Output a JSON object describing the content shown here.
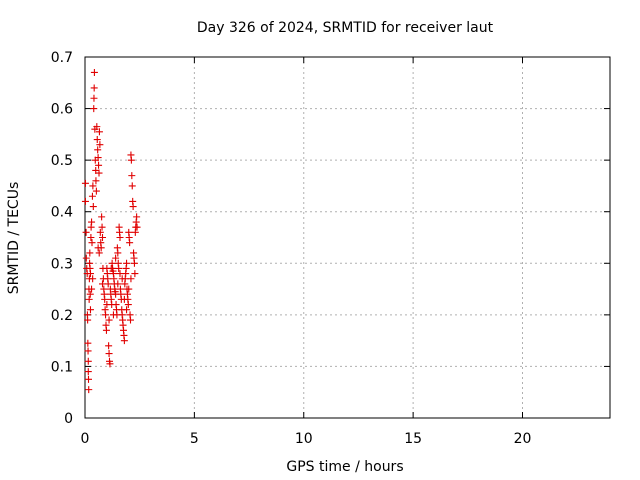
{
  "chart_data": {
    "type": "scatter",
    "title": "Day 326 of 2024, SRMTID for receiver laut",
    "xlabel": "GPS time / hours",
    "ylabel": "SRMTID / TECUs",
    "xlim": [
      0,
      24
    ],
    "ylim": [
      0,
      0.7
    ],
    "x_ticks": [
      0,
      5,
      10,
      15,
      20
    ],
    "x_tick_labels": [
      "0",
      "5",
      "10",
      "15",
      "20"
    ],
    "y_ticks": [
      0,
      0.1,
      0.2,
      0.3,
      0.4,
      0.5,
      0.6,
      0.7
    ],
    "y_tick_labels": [
      "0",
      "0.1",
      "0.2",
      "0.3",
      "0.4",
      "0.5",
      "0.6",
      "0.7"
    ],
    "grid": true,
    "marker": "+",
    "series": [
      {
        "name": "SRMTID",
        "color": "#e00000",
        "points": [
          [
            0.02,
            0.455
          ],
          [
            0.02,
            0.42
          ],
          [
            0.05,
            0.36
          ],
          [
            0.06,
            0.31
          ],
          [
            0.08,
            0.29
          ],
          [
            0.1,
            0.28
          ],
          [
            0.11,
            0.2
          ],
          [
            0.12,
            0.19
          ],
          [
            0.13,
            0.145
          ],
          [
            0.14,
            0.13
          ],
          [
            0.15,
            0.11
          ],
          [
            0.15,
            0.09
          ],
          [
            0.16,
            0.075
          ],
          [
            0.17,
            0.055
          ],
          [
            0.18,
            0.25
          ],
          [
            0.19,
            0.23
          ],
          [
            0.2,
            0.27
          ],
          [
            0.21,
            0.3
          ],
          [
            0.22,
            0.32
          ],
          [
            0.23,
            0.29
          ],
          [
            0.24,
            0.24
          ],
          [
            0.25,
            0.21
          ],
          [
            0.27,
            0.35
          ],
          [
            0.28,
            0.37
          ],
          [
            0.3,
            0.38
          ],
          [
            0.32,
            0.34
          ],
          [
            0.34,
            0.43
          ],
          [
            0.36,
            0.45
          ],
          [
            0.38,
            0.41
          ],
          [
            0.4,
            0.6
          ],
          [
            0.41,
            0.62
          ],
          [
            0.42,
            0.64
          ],
          [
            0.43,
            0.67
          ],
          [
            0.45,
            0.56
          ],
          [
            0.47,
            0.5
          ],
          [
            0.49,
            0.48
          ],
          [
            0.5,
            0.46
          ],
          [
            0.52,
            0.44
          ],
          [
            0.54,
            0.565
          ],
          [
            0.56,
            0.54
          ],
          [
            0.58,
            0.52
          ],
          [
            0.6,
            0.505
          ],
          [
            0.62,
            0.49
          ],
          [
            0.64,
            0.475
          ],
          [
            0.66,
            0.555
          ],
          [
            0.68,
            0.53
          ],
          [
            0.7,
            0.36
          ],
          [
            0.72,
            0.34
          ],
          [
            0.74,
            0.33
          ],
          [
            0.76,
            0.39
          ],
          [
            0.78,
            0.37
          ],
          [
            0.8,
            0.35
          ],
          [
            0.82,
            0.29
          ],
          [
            0.84,
            0.27
          ],
          [
            0.86,
            0.25
          ],
          [
            0.88,
            0.24
          ],
          [
            0.9,
            0.23
          ],
          [
            0.92,
            0.21
          ],
          [
            0.94,
            0.2
          ],
          [
            0.96,
            0.18
          ],
          [
            0.98,
            0.17
          ],
          [
            1.0,
            0.29
          ],
          [
            1.02,
            0.28
          ],
          [
            1.04,
            0.27
          ],
          [
            1.06,
            0.26
          ],
          [
            1.08,
            0.14
          ],
          [
            1.1,
            0.125
          ],
          [
            1.12,
            0.11
          ],
          [
            1.14,
            0.105
          ],
          [
            1.16,
            0.25
          ],
          [
            1.18,
            0.24
          ],
          [
            1.2,
            0.23
          ],
          [
            1.22,
            0.22
          ],
          [
            1.24,
            0.3
          ],
          [
            1.26,
            0.29
          ],
          [
            1.28,
            0.285
          ],
          [
            1.3,
            0.28
          ],
          [
            1.32,
            0.27
          ],
          [
            1.34,
            0.26
          ],
          [
            1.36,
            0.25
          ],
          [
            1.38,
            0.245
          ],
          [
            1.4,
            0.24
          ],
          [
            1.42,
            0.22
          ],
          [
            1.44,
            0.21
          ],
          [
            1.46,
            0.2
          ],
          [
            1.48,
            0.33
          ],
          [
            1.5,
            0.32
          ],
          [
            1.52,
            0.3
          ],
          [
            1.54,
            0.29
          ],
          [
            1.56,
            0.37
          ],
          [
            1.58,
            0.36
          ],
          [
            1.6,
            0.35
          ],
          [
            1.62,
            0.25
          ],
          [
            1.64,
            0.24
          ],
          [
            1.66,
            0.23
          ],
          [
            1.68,
            0.21
          ],
          [
            1.7,
            0.2
          ],
          [
            1.72,
            0.19
          ],
          [
            1.74,
            0.18
          ],
          [
            1.76,
            0.17
          ],
          [
            1.78,
            0.16
          ],
          [
            1.8,
            0.15
          ],
          [
            1.82,
            0.26
          ],
          [
            1.84,
            0.27
          ],
          [
            1.86,
            0.28
          ],
          [
            1.88,
            0.29
          ],
          [
            1.9,
            0.3
          ],
          [
            1.92,
            0.25
          ],
          [
            1.94,
            0.24
          ],
          [
            1.96,
            0.23
          ],
          [
            1.98,
            0.22
          ],
          [
            2.0,
            0.36
          ],
          [
            2.02,
            0.35
          ],
          [
            2.04,
            0.34
          ],
          [
            2.06,
            0.2
          ],
          [
            2.08,
            0.19
          ],
          [
            2.1,
            0.51
          ],
          [
            2.12,
            0.5
          ],
          [
            2.14,
            0.47
          ],
          [
            2.16,
            0.45
          ],
          [
            2.18,
            0.42
          ],
          [
            2.2,
            0.41
          ],
          [
            2.22,
            0.32
          ],
          [
            2.24,
            0.31
          ],
          [
            2.26,
            0.3
          ],
          [
            2.28,
            0.28
          ],
          [
            2.3,
            0.36
          ],
          [
            2.32,
            0.37
          ],
          [
            2.34,
            0.38
          ],
          [
            2.36,
            0.39
          ],
          [
            2.38,
            0.37
          ],
          [
            0.3,
            0.25
          ],
          [
            0.35,
            0.27
          ],
          [
            0.6,
            0.33
          ],
          [
            0.65,
            0.32
          ],
          [
            1.1,
            0.19
          ],
          [
            1.3,
            0.2
          ],
          [
            1.5,
            0.26
          ],
          [
            1.7,
            0.27
          ],
          [
            1.9,
            0.21
          ],
          [
            2.1,
            0.27
          ],
          [
            0.25,
            0.28
          ],
          [
            0.8,
            0.26
          ],
          [
            1.0,
            0.22
          ],
          [
            1.2,
            0.29
          ],
          [
            1.4,
            0.31
          ],
          [
            1.6,
            0.28
          ],
          [
            1.8,
            0.23
          ],
          [
            2.0,
            0.25
          ]
        ]
      }
    ]
  }
}
